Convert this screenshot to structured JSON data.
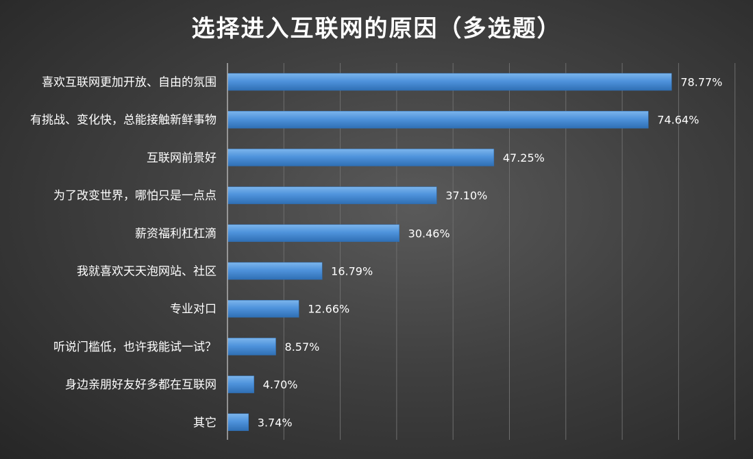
{
  "chart_data": {
    "type": "bar",
    "orientation": "horizontal",
    "title": "选择进入互联网的原因（多选题）",
    "categories": [
      "喜欢互联网更加开放、自由的氛围",
      "有挑战、变化快，总能接触新鲜事物",
      "互联网前景好",
      "为了改变世界，哪怕只是一点点",
      "薪资福利杠杠滴",
      "我就喜欢天天泡网站、社区",
      "专业对口",
      "听说门槛低，也许我能试一试？",
      "身边亲朋好友好多都在互联网",
      "其它"
    ],
    "values": [
      78.77,
      74.64,
      47.25,
      37.1,
      30.46,
      16.79,
      12.66,
      8.57,
      4.7,
      3.74
    ],
    "data_labels": [
      "78.77%",
      "74.64%",
      "47.25%",
      "37.10%",
      "30.46%",
      "16.79%",
      "12.66%",
      "8.57%",
      "4.70%",
      "3.74%"
    ],
    "xlim": [
      0,
      90
    ],
    "x_grid_step": 10,
    "grid": true,
    "legend": "none",
    "bar_color": "#4f93dc",
    "bar_color_light": "#7cb5ec",
    "bar_color_dark": "#2f6fb4"
  }
}
